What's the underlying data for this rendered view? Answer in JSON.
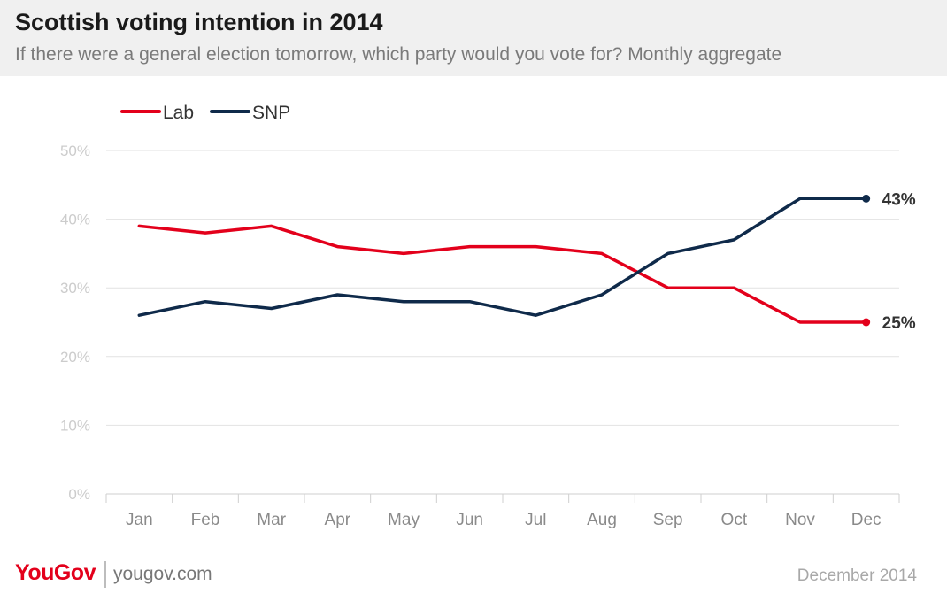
{
  "header": {
    "title": "Scottish voting intention in 2014",
    "subtitle": "If there were a general election tomorrow, which party would you vote for? Monthly aggregate"
  },
  "chart_data": {
    "type": "line",
    "categories": [
      "Jan",
      "Feb",
      "Mar",
      "Apr",
      "May",
      "Jun",
      "Jul",
      "Aug",
      "Sep",
      "Oct",
      "Nov",
      "Dec"
    ],
    "series": [
      {
        "name": "Lab",
        "color": "#e3001b",
        "values": [
          39,
          38,
          39,
          36,
          35,
          36,
          36,
          35,
          30,
          30,
          25,
          25
        ],
        "end_label": "25%"
      },
      {
        "name": "SNP",
        "color": "#0f2a4a",
        "values": [
          26,
          28,
          27,
          29,
          28,
          28,
          26,
          29,
          35,
          37,
          43,
          43
        ],
        "end_label": "43%"
      }
    ],
    "ylim": [
      0,
      50
    ],
    "yticks": [
      "0%",
      "10%",
      "20%",
      "30%",
      "40%",
      "50%"
    ],
    "grid": true,
    "legend_position": "top-left"
  },
  "footer": {
    "brand": "YouGov",
    "url": "yougov.com",
    "date": "December 2014"
  }
}
